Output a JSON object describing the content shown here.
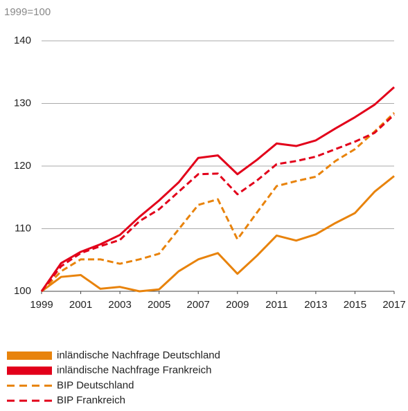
{
  "chart_data": {
    "type": "line",
    "y_label": "1999=100",
    "x": [
      1999,
      2000,
      2001,
      2002,
      2003,
      2004,
      2005,
      2006,
      2007,
      2008,
      2009,
      2010,
      2011,
      2012,
      2013,
      2014,
      2015,
      2016,
      2017
    ],
    "xlim": [
      1999,
      2017
    ],
    "xticks": [
      1999,
      2001,
      2003,
      2005,
      2007,
      2009,
      2011,
      2013,
      2015,
      2017
    ],
    "ylim": [
      100,
      140
    ],
    "yticks": [
      100,
      110,
      120,
      130,
      140
    ],
    "grid": true,
    "legend": "bottom",
    "series": [
      {
        "name": "inländische Nachfrage Deutschland",
        "color": "#e8830c",
        "dashed": false,
        "values": [
          100,
          102.3,
          102.6,
          100.4,
          100.7,
          100.0,
          100.3,
          103.2,
          105.1,
          106.1,
          102.8,
          105.7,
          108.9,
          108.1,
          109.1,
          110.9,
          112.5,
          115.9,
          118.4
        ]
      },
      {
        "name": "inländische Nachfrage Frankreich",
        "color": "#e2001a",
        "dashed": false,
        "values": [
          100,
          104.5,
          106.3,
          107.5,
          109.0,
          111.9,
          114.5,
          117.4,
          121.3,
          121.7,
          118.7,
          121.0,
          123.6,
          123.2,
          124.1,
          126.0,
          127.8,
          129.8,
          132.6
        ]
      },
      {
        "name": "BIP Deutschland",
        "color": "#e8830c",
        "dashed": true,
        "values": [
          100,
          103.2,
          105.1,
          105.1,
          104.4,
          105.1,
          106.0,
          109.9,
          113.8,
          114.7,
          108.3,
          112.6,
          116.8,
          117.6,
          118.3,
          120.8,
          122.7,
          125.5,
          128.5
        ]
      },
      {
        "name": "BIP Frankreich",
        "color": "#e2001a",
        "dashed": true,
        "values": [
          100,
          104.0,
          106.1,
          107.2,
          108.2,
          111.2,
          113.1,
          115.9,
          118.7,
          118.8,
          115.5,
          117.7,
          120.3,
          120.8,
          121.5,
          122.7,
          123.9,
          125.3,
          128.2
        ]
      }
    ]
  }
}
